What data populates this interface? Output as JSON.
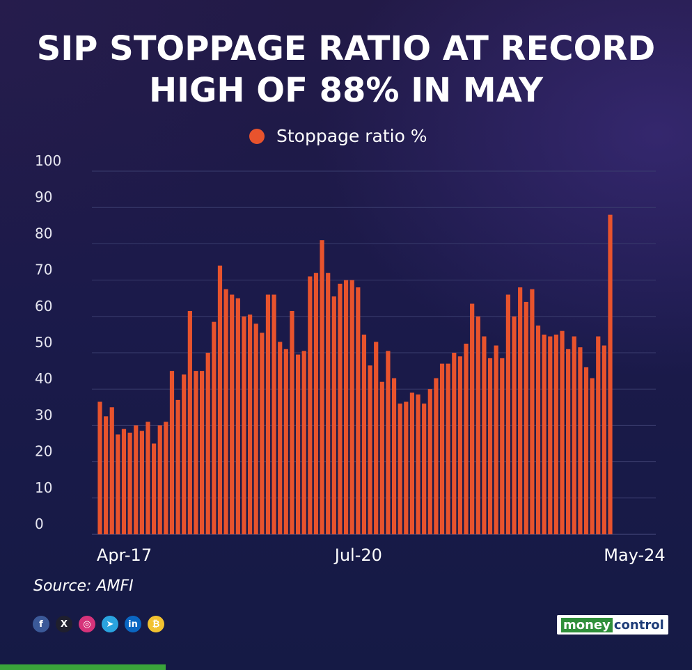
{
  "title_lines": [
    "SIP STOPPAGE RATIO AT RECORD",
    "HIGH OF 88% IN MAY"
  ],
  "legend": {
    "label": "Stoppage ratio %",
    "color": "#e8532d"
  },
  "source": "Source: AMFI",
  "brand": {
    "part1": "money",
    "part2": "control"
  },
  "social_icons": [
    {
      "name": "facebook-icon",
      "glyph": "f",
      "color": "#3b5998"
    },
    {
      "name": "x-icon",
      "glyph": "X",
      "color": "#1f1f2e"
    },
    {
      "name": "instagram-icon",
      "glyph": "◎",
      "color": "#d6337a"
    },
    {
      "name": "telegram-icon",
      "glyph": "➤",
      "color": "#2aa3df"
    },
    {
      "name": "linkedin-icon",
      "glyph": "in",
      "color": "#0a66c2"
    },
    {
      "name": "coin-icon",
      "glyph": "₿",
      "color": "#f2c230"
    }
  ],
  "chart_data": {
    "type": "bar",
    "ylim": [
      0,
      100
    ],
    "yticks": [
      0,
      10,
      20,
      30,
      40,
      50,
      60,
      70,
      80,
      90,
      100
    ],
    "grid": true,
    "bar_color": "#e8532d",
    "series": [
      {
        "name": "Stoppage ratio %",
        "values": [
          36.5,
          32.5,
          35,
          27.5,
          29,
          28,
          30,
          28.5,
          31,
          25,
          30,
          31,
          45,
          37,
          44,
          61.5,
          45,
          45,
          50,
          58.5,
          74,
          67.5,
          66,
          65,
          60,
          60.5,
          58,
          55.5,
          66,
          66,
          53,
          51,
          61.5,
          49.5,
          50.5,
          71,
          72,
          81,
          72,
          65.5,
          69,
          70,
          70,
          68,
          55,
          46.5,
          53,
          42,
          50.5,
          43,
          36,
          36.5,
          39,
          38.5,
          36,
          40,
          43,
          47,
          47,
          50,
          49,
          52.5,
          63.5,
          60,
          54.5,
          48.5,
          52,
          48.5,
          66,
          60,
          68,
          64,
          67.5,
          57.5,
          55,
          54.5,
          55,
          56,
          51,
          54.5,
          51.5,
          46,
          43,
          54.5,
          52,
          88
        ]
      }
    ],
    "x_ticks": [
      {
        "label": "Apr-17",
        "index": 0
      },
      {
        "label": "Jul-20",
        "index": 39
      },
      {
        "label": "May-24",
        "index": 85
      }
    ]
  }
}
